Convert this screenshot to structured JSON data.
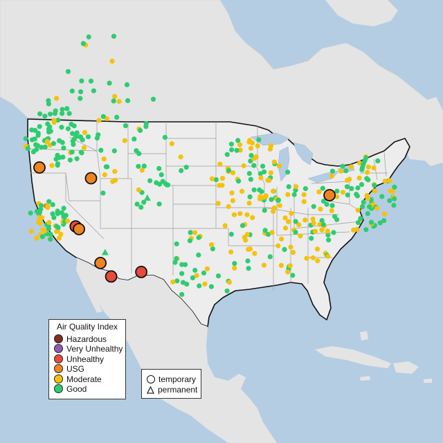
{
  "legend": {
    "title": "Air Quality Index",
    "categories": [
      {
        "label": "Hazardous",
        "color": "#7e2f25"
      },
      {
        "label": "Very Unhealthy",
        "color": "#8f5bb0"
      },
      {
        "label": "Unhealthy",
        "color": "#e64b3c"
      },
      {
        "label": "USG",
        "color": "#ee8422"
      },
      {
        "label": "Moderate",
        "color": "#f4c20d"
      },
      {
        "label": "Good",
        "color": "#2ecc71"
      }
    ]
  },
  "type_legend": {
    "temporary": "temporary",
    "permanent": "permanent"
  },
  "colors": {
    "ocean": "#b5cde3",
    "land": "#e4e4e4",
    "usa": "#ededed",
    "border": "#111111",
    "state_line": "#9a9a9a"
  },
  "large_markers": [
    {
      "lon": -123.9,
      "lat": 44.3,
      "category": "USG"
    },
    {
      "lon": -116.2,
      "lat": 43.1,
      "category": "USG"
    },
    {
      "lon": -118.5,
      "lat": 37.7,
      "category": "Unhealthy"
    },
    {
      "lon": -118.0,
      "lat": 37.4,
      "category": "USG"
    },
    {
      "lon": -114.8,
      "lat": 33.6,
      "category": "USG"
    },
    {
      "lon": -113.2,
      "lat": 32.1,
      "category": "Unhealthy"
    },
    {
      "lon": -108.7,
      "lat": 32.6,
      "category": "Unhealthy"
    },
    {
      "lon": -80.6,
      "lat": 41.2,
      "category": "USG"
    }
  ],
  "permanent_markers": [
    {
      "lon": -114.1,
      "lat": 34.8,
      "category": "Good"
    },
    {
      "lon": -107.8,
      "lat": 40.9,
      "category": "Good"
    }
  ]
}
